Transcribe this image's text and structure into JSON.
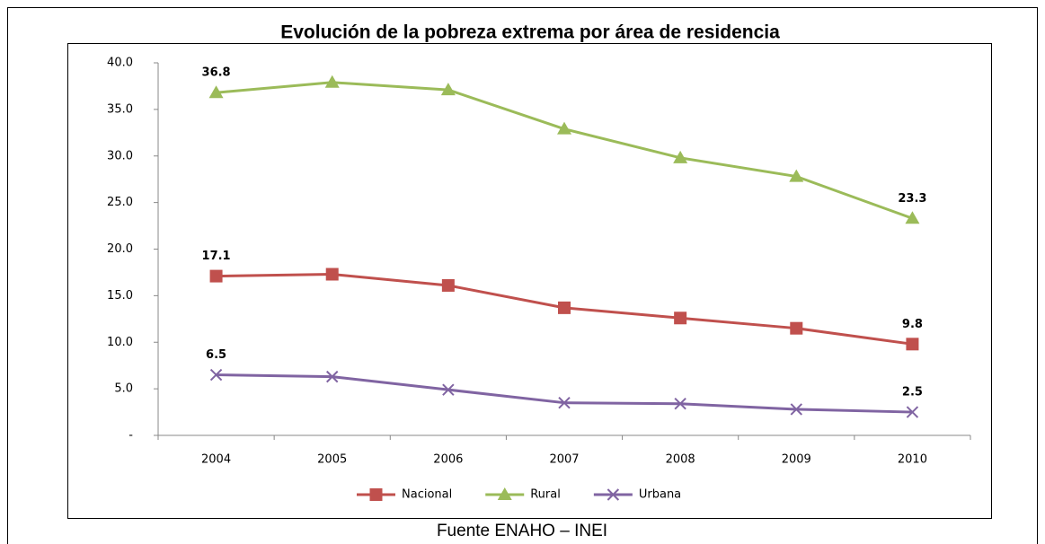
{
  "chart_data": {
    "type": "line",
    "title": "Evolución de la pobreza extrema por área de residencia",
    "source": "Fuente ENAHO – INEI",
    "categories": [
      "2004",
      "2005",
      "2006",
      "2007",
      "2008",
      "2009",
      "2010"
    ],
    "series": [
      {
        "name": "Nacional",
        "color": "#c0504d",
        "marker": "square",
        "values": [
          17.1,
          17.3,
          16.1,
          13.7,
          12.6,
          11.5,
          9.8
        ],
        "value_labels": [
          "17.1",
          null,
          null,
          null,
          null,
          null,
          "9.8"
        ]
      },
      {
        "name": "Rural",
        "color": "#9bbb59",
        "marker": "triangle",
        "values": [
          36.8,
          37.9,
          37.1,
          32.9,
          29.8,
          27.8,
          23.3
        ],
        "value_labels": [
          "36.8",
          null,
          null,
          null,
          null,
          null,
          "23.3"
        ]
      },
      {
        "name": "Urbana",
        "color": "#8064a2",
        "marker": "x",
        "values": [
          6.5,
          6.3,
          4.9,
          3.5,
          3.4,
          2.8,
          2.5
        ],
        "value_labels": [
          "6.5",
          null,
          null,
          null,
          null,
          null,
          "2.5"
        ]
      }
    ],
    "ylim": [
      0,
      40
    ],
    "yticks": [
      {
        "value": 0,
        "label": "-"
      },
      {
        "value": 5,
        "label": "5.0"
      },
      {
        "value": 10,
        "label": "10.0"
      },
      {
        "value": 15,
        "label": "15.0"
      },
      {
        "value": 20,
        "label": "20.0"
      },
      {
        "value": 25,
        "label": "25.0"
      },
      {
        "value": 30,
        "label": "30.0"
      },
      {
        "value": 35,
        "label": "35.0"
      },
      {
        "value": 40,
        "label": "40.0"
      }
    ],
    "grid": false,
    "legend": "bottom"
  }
}
